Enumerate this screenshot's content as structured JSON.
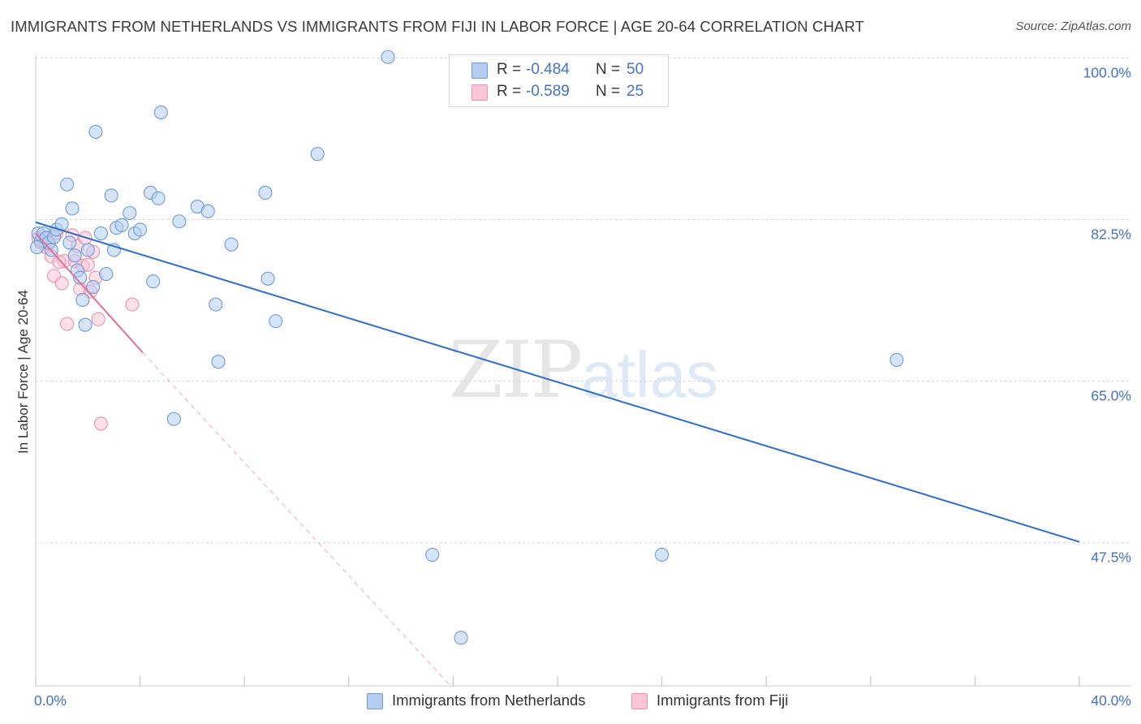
{
  "title": "IMMIGRANTS FROM NETHERLANDS VS IMMIGRANTS FROM FIJI IN LABOR FORCE | AGE 20-64 CORRELATION CHART",
  "source": "Source: ZipAtlas.com",
  "watermark": {
    "zip": "ZIP",
    "atlas": "atlas"
  },
  "legend": {
    "rows": [
      {
        "r_label": "R =",
        "r_value": "-0.484",
        "n_label": "N =",
        "n_value": "50",
        "color": "#b4cdf0",
        "border": "#6f9ad8"
      },
      {
        "r_label": "R =",
        "r_value": "-0.589",
        "n_label": "N =",
        "n_value": "25",
        "color": "#fbc6d6",
        "border": "#ee90ad"
      }
    ]
  },
  "bottom_legend": [
    {
      "label": "Immigrants from Netherlands",
      "color": "#b4cdf0",
      "border": "#6f9ad8"
    },
    {
      "label": "Immigrants from Fiji",
      "color": "#fbc6d6",
      "border": "#ee90ad"
    }
  ],
  "chart_data": {
    "type": "scatter",
    "title": "IMMIGRANTS FROM NETHERLANDS VS IMMIGRANTS FROM FIJI IN LABOR FORCE | AGE 20-64 CORRELATION CHART",
    "xlabel": "",
    "ylabel": "In Labor Force | Age 20-64",
    "xlim": [
      0,
      40
    ],
    "ylim": [
      32,
      101
    ],
    "x_tick_labels": [
      {
        "value": 0,
        "label": "0.0%"
      },
      {
        "value": 40,
        "label": "40.0%"
      }
    ],
    "y_tick_labels": [
      {
        "value": 100,
        "label": "100.0%"
      },
      {
        "value": 82.5,
        "label": "82.5%"
      },
      {
        "value": 65,
        "label": "65.0%"
      },
      {
        "value": 47.5,
        "label": "47.5%"
      }
    ],
    "grid": true,
    "legend_placement": "top-center",
    "series": [
      {
        "name": "Immigrants from Netherlands",
        "color": "#6f9ad8",
        "fill": "#b4cdf0",
        "points": [
          [
            0.1,
            81.0
          ],
          [
            0.2,
            80.2
          ],
          [
            0.3,
            81.0
          ],
          [
            0.4,
            80.5
          ],
          [
            0.5,
            80.0
          ],
          [
            0.6,
            79.2
          ],
          [
            0.7,
            80.6
          ],
          [
            0.8,
            81.4
          ],
          [
            1.0,
            82.0
          ],
          [
            1.2,
            86.3
          ],
          [
            1.3,
            80.0
          ],
          [
            1.4,
            83.7
          ],
          [
            1.5,
            78.6
          ],
          [
            1.6,
            77.0
          ],
          [
            1.7,
            76.2
          ],
          [
            1.8,
            73.8
          ],
          [
            1.9,
            71.1
          ],
          [
            2.0,
            79.2
          ],
          [
            2.2,
            75.2
          ],
          [
            2.3,
            92.0
          ],
          [
            2.5,
            81.0
          ],
          [
            2.7,
            76.6
          ],
          [
            2.9,
            85.1
          ],
          [
            3.0,
            79.2
          ],
          [
            3.1,
            81.6
          ],
          [
            3.3,
            81.9
          ],
          [
            3.6,
            83.2
          ],
          [
            3.8,
            81.0
          ],
          [
            4.0,
            81.4
          ],
          [
            4.4,
            85.4
          ],
          [
            4.5,
            75.8
          ],
          [
            4.7,
            84.8
          ],
          [
            4.8,
            94.1
          ],
          [
            5.3,
            60.9
          ],
          [
            5.5,
            82.3
          ],
          [
            6.2,
            83.9
          ],
          [
            6.6,
            83.4
          ],
          [
            6.9,
            73.3
          ],
          [
            7.0,
            67.1
          ],
          [
            7.5,
            79.8
          ],
          [
            8.8,
            85.4
          ],
          [
            8.9,
            76.1
          ],
          [
            9.2,
            71.5
          ],
          [
            10.8,
            89.6
          ],
          [
            13.5,
            100.1
          ],
          [
            15.2,
            46.2
          ],
          [
            16.3,
            37.2
          ],
          [
            24.0,
            46.2
          ],
          [
            33.0,
            67.3
          ],
          [
            0.05,
            79.5
          ]
        ]
      },
      {
        "name": "Immigrants from Fiji",
        "color": "#ee90ad",
        "fill": "#fbc6d6",
        "points": [
          [
            0.1,
            80.5
          ],
          [
            0.2,
            80.0
          ],
          [
            0.3,
            80.6
          ],
          [
            0.4,
            79.5
          ],
          [
            0.5,
            79.9
          ],
          [
            0.6,
            78.5
          ],
          [
            0.7,
            76.4
          ],
          [
            0.8,
            81.0
          ],
          [
            1.0,
            75.6
          ],
          [
            1.1,
            78.0
          ],
          [
            1.2,
            71.2
          ],
          [
            1.4,
            80.8
          ],
          [
            1.5,
            78.0
          ],
          [
            1.6,
            79.6
          ],
          [
            1.7,
            75.0
          ],
          [
            1.8,
            77.5
          ],
          [
            1.9,
            80.5
          ],
          [
            2.0,
            77.6
          ],
          [
            2.1,
            74.7
          ],
          [
            2.3,
            76.2
          ],
          [
            2.4,
            71.7
          ],
          [
            2.5,
            60.4
          ],
          [
            3.7,
            73.3
          ],
          [
            0.9,
            77.9
          ],
          [
            2.2,
            79.0
          ]
        ]
      }
    ],
    "trend_lines": [
      {
        "series": "Immigrants from Netherlands",
        "x": [
          0,
          40
        ],
        "y": [
          82.2,
          47.6
        ],
        "style": "solid"
      },
      {
        "series": "Immigrants from Fiji",
        "x": [
          0,
          4.1
        ],
        "y": [
          81.0,
          68.1
        ],
        "style": "solid"
      },
      {
        "series": "Immigrants from Fiji",
        "x": [
          4.1,
          15.9
        ],
        "y": [
          68.1,
          32.0
        ],
        "style": "dashed"
      }
    ]
  }
}
